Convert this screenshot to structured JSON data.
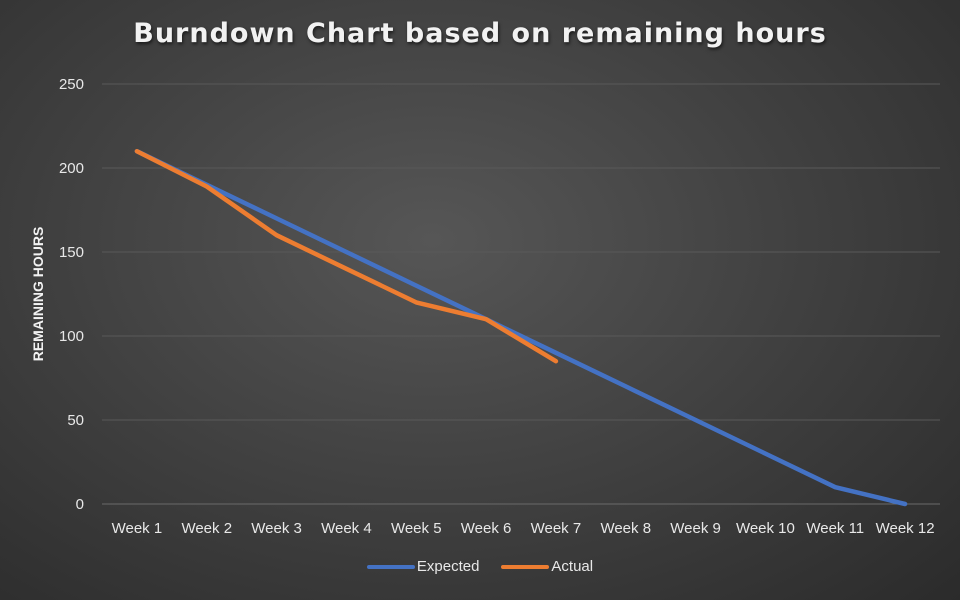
{
  "chart_data": {
    "type": "line",
    "title": "Burndown Chart based on remaining hours",
    "xlabel": "",
    "ylabel": "REMAINING HOURS",
    "categories": [
      "Week 1",
      "Week 2",
      "Week 3",
      "Week 4",
      "Week 5",
      "Week 6",
      "Week 7",
      "Week 8",
      "Week 9",
      "Week 10",
      "Week 11",
      "Week 12"
    ],
    "ylim": [
      0,
      250
    ],
    "yticks": [
      0,
      50,
      100,
      150,
      200,
      250
    ],
    "grid": true,
    "legend_position": "bottom",
    "series": [
      {
        "name": "Expected",
        "color": "#4472c4",
        "values": [
          210,
          190,
          170,
          150,
          130,
          110,
          90,
          70,
          50,
          30,
          10,
          0
        ]
      },
      {
        "name": "Actual",
        "color": "#ed7d31",
        "values": [
          210,
          189,
          160,
          140,
          120,
          110,
          85,
          null,
          null,
          null,
          null,
          null
        ]
      }
    ]
  }
}
